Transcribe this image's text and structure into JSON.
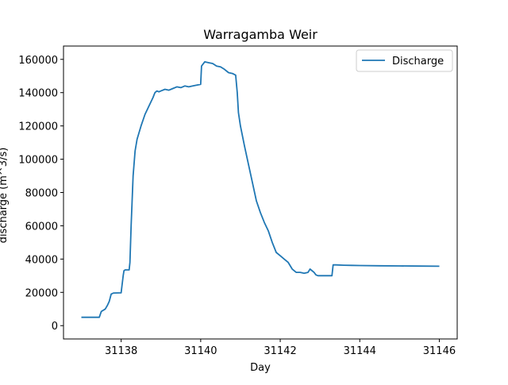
{
  "chart_data": {
    "type": "line",
    "title": "Warragamba Weir",
    "xlabel": "Day",
    "ylabel": "discharge (m^3/s)",
    "xlim": [
      31136.55,
      31146.45
    ],
    "ylim": [
      -8000,
      168000
    ],
    "xticks": [
      31138,
      31140,
      31142,
      31144,
      31146
    ],
    "yticks": [
      0,
      20000,
      40000,
      60000,
      80000,
      100000,
      120000,
      140000,
      160000
    ],
    "legend": {
      "position": "upper right",
      "entries": [
        "Discharge"
      ]
    },
    "series": [
      {
        "name": "Discharge",
        "color": "#1f77b4",
        "x": [
          31137.0,
          31137.45,
          31137.5,
          31137.6,
          31137.65,
          31137.7,
          31137.75,
          31137.8,
          31137.82,
          31138.0,
          31138.05,
          31138.07,
          31138.1,
          31138.2,
          31138.22,
          31138.25,
          31138.3,
          31138.35,
          31138.4,
          31138.5,
          31138.6,
          31138.7,
          31138.8,
          31138.85,
          31138.9,
          31138.95,
          31139.0,
          31139.1,
          31139.2,
          31139.3,
          31139.4,
          31139.5,
          31139.6,
          31139.7,
          31139.8,
          31139.9,
          31140.0,
          31140.02,
          31140.1,
          31140.2,
          31140.3,
          31140.4,
          31140.5,
          31140.6,
          31140.7,
          31140.8,
          31140.88,
          31140.92,
          31140.95,
          31141.0,
          31141.1,
          31141.2,
          31141.3,
          31141.4,
          31141.5,
          31141.6,
          31141.7,
          31141.8,
          31141.9,
          31142.0,
          31142.1,
          31142.2,
          31142.3,
          31142.4,
          31142.5,
          31142.6,
          31142.7,
          31142.75,
          31142.8,
          31142.85,
          31142.9,
          31142.95,
          31143.0,
          31143.2,
          31143.3,
          31143.33,
          31143.4,
          31143.6,
          31143.8,
          31144.0,
          31144.5,
          31145.0,
          31145.5,
          31146.0
        ],
        "y": [
          5000,
          5000,
          8500,
          10000,
          12000,
          14500,
          19000,
          19500,
          19600,
          19700,
          30000,
          33000,
          33500,
          33500,
          38000,
          60000,
          90000,
          105000,
          112000,
          120000,
          127000,
          132000,
          137000,
          140000,
          141000,
          140500,
          141000,
          142000,
          141500,
          142500,
          143500,
          143000,
          144000,
          143500,
          144000,
          144500,
          145000,
          156000,
          158500,
          158000,
          157500,
          156000,
          155500,
          154000,
          152000,
          151500,
          150500,
          140000,
          128000,
          120000,
          108000,
          97000,
          86000,
          75000,
          68000,
          62000,
          57000,
          50000,
          44000,
          42000,
          40000,
          38000,
          34000,
          32000,
          32000,
          31500,
          32000,
          34000,
          33000,
          32000,
          30500,
          30000,
          30000,
          30000,
          30000,
          36500,
          36500,
          36300,
          36200,
          36100,
          36000,
          35900,
          35800,
          35700
        ]
      }
    ]
  }
}
